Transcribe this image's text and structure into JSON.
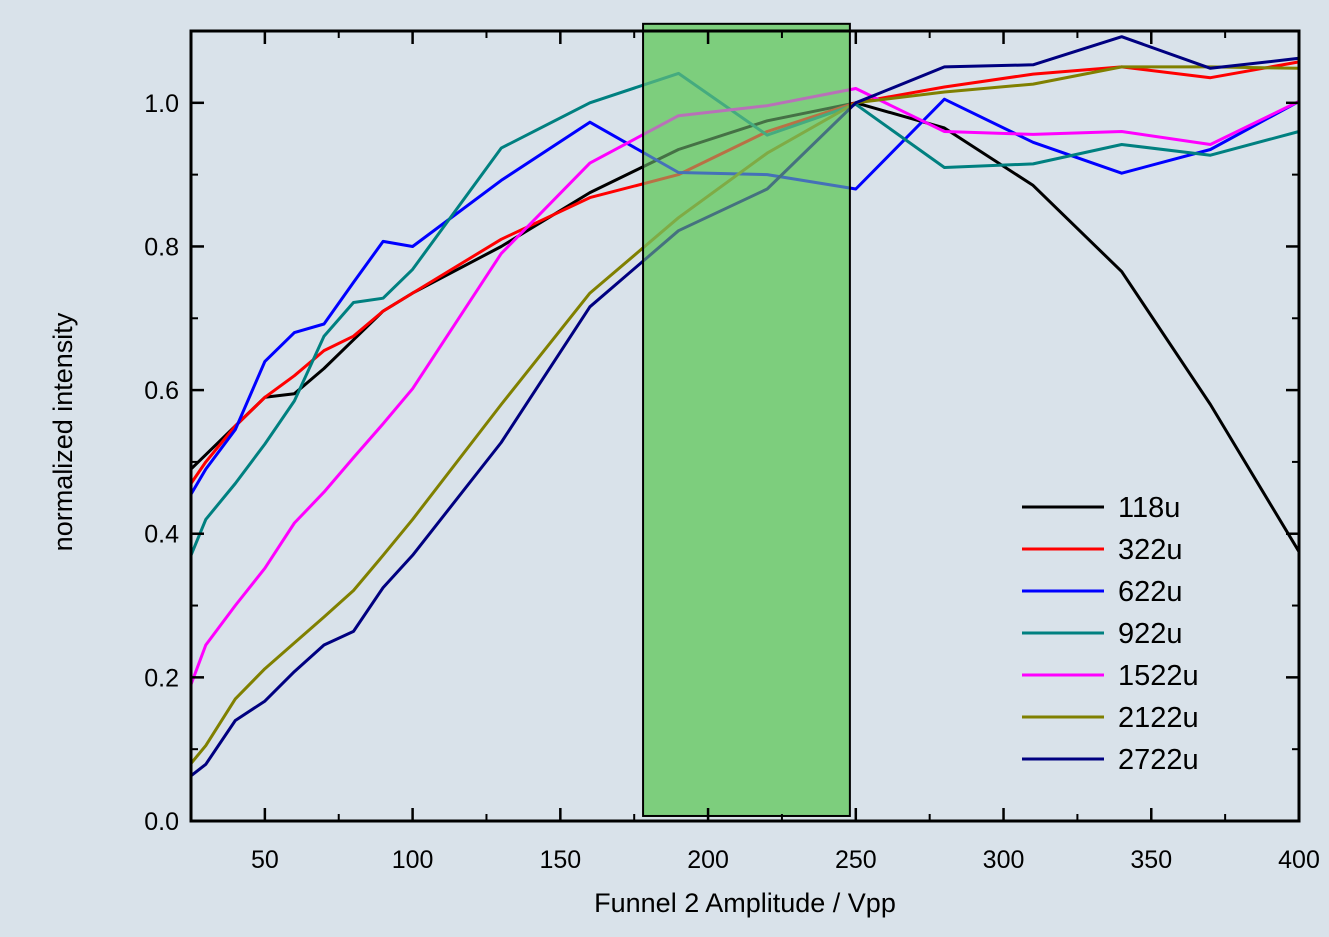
{
  "chart_data": {
    "type": "line",
    "title": "",
    "xlabel": "Funnel 2 Amplitude / Vpp",
    "ylabel": "normalized intensity",
    "xlim": [
      25,
      400
    ],
    "ylim": [
      0,
      1.1
    ],
    "x_ticks": [
      50,
      100,
      150,
      200,
      250,
      300,
      350,
      400
    ],
    "x_tick_labels": [
      "50",
      "100",
      "150",
      "200",
      "250",
      "300",
      "350",
      "400"
    ],
    "y_ticks": [
      0,
      0.2,
      0.4,
      0.6,
      0.8,
      1.0
    ],
    "y_tick_labels": [
      "0.0",
      "0.2",
      "0.4",
      "0.6",
      "0.8",
      "1.0"
    ],
    "grid": false,
    "legend_position": "bottom-right",
    "highlight_region": {
      "x": [
        178,
        248
      ],
      "y": [
        0.007,
        1.11
      ],
      "color": "#7dce7d"
    },
    "series": [
      {
        "name": "118u",
        "color": "#000000",
        "points": [
          [
            25,
            0.49
          ],
          [
            30,
            0.51
          ],
          [
            40,
            0.55
          ],
          [
            50,
            0.59
          ],
          [
            60,
            0.595
          ],
          [
            70,
            0.63
          ],
          [
            80,
            0.67
          ],
          [
            90,
            0.71
          ],
          [
            100,
            0.735
          ],
          [
            130,
            0.8
          ],
          [
            160,
            0.875
          ],
          [
            190,
            0.935
          ],
          [
            220,
            0.975
          ],
          [
            250,
            1.0
          ],
          [
            280,
            0.965
          ],
          [
            310,
            0.885
          ],
          [
            340,
            0.765
          ],
          [
            370,
            0.58
          ],
          [
            400,
            0.375
          ]
        ]
      },
      {
        "name": "322u",
        "color": "#ff0000",
        "points": [
          [
            25,
            0.47
          ],
          [
            30,
            0.5
          ],
          [
            40,
            0.55
          ],
          [
            50,
            0.59
          ],
          [
            60,
            0.62
          ],
          [
            70,
            0.655
          ],
          [
            80,
            0.675
          ],
          [
            90,
            0.71
          ],
          [
            100,
            0.735
          ],
          [
            130,
            0.81
          ],
          [
            160,
            0.868
          ],
          [
            190,
            0.9
          ],
          [
            220,
            0.96
          ],
          [
            250,
            1.0
          ],
          [
            280,
            1.022
          ],
          [
            310,
            1.04
          ],
          [
            340,
            1.05
          ],
          [
            370,
            1.035
          ],
          [
            400,
            1.057
          ]
        ]
      },
      {
        "name": "622u",
        "color": "#0000ff",
        "points": [
          [
            25,
            0.455
          ],
          [
            30,
            0.49
          ],
          [
            40,
            0.545
          ],
          [
            50,
            0.64
          ],
          [
            60,
            0.68
          ],
          [
            70,
            0.692
          ],
          [
            80,
            0.75
          ],
          [
            90,
            0.807
          ],
          [
            100,
            0.8
          ],
          [
            130,
            0.892
          ],
          [
            160,
            0.973
          ],
          [
            190,
            0.903
          ],
          [
            220,
            0.9
          ],
          [
            250,
            0.88
          ],
          [
            280,
            1.005
          ],
          [
            310,
            0.945
          ],
          [
            340,
            0.902
          ],
          [
            370,
            0.935
          ],
          [
            400,
            1.002
          ]
        ]
      },
      {
        "name": "922u",
        "color": "#008080",
        "points": [
          [
            25,
            0.37
          ],
          [
            30,
            0.42
          ],
          [
            40,
            0.47
          ],
          [
            50,
            0.525
          ],
          [
            60,
            0.585
          ],
          [
            70,
            0.675
          ],
          [
            80,
            0.722
          ],
          [
            90,
            0.728
          ],
          [
            100,
            0.768
          ],
          [
            130,
            0.937
          ],
          [
            160,
            1.0
          ],
          [
            190,
            1.041
          ],
          [
            220,
            0.955
          ],
          [
            250,
            0.998
          ],
          [
            280,
            0.91
          ],
          [
            310,
            0.915
          ],
          [
            340,
            0.942
          ],
          [
            370,
            0.927
          ],
          [
            400,
            0.96
          ]
        ]
      },
      {
        "name": "1522u",
        "color": "#ff00ff",
        "points": [
          [
            25,
            0.19
          ],
          [
            30,
            0.245
          ],
          [
            40,
            0.3
          ],
          [
            50,
            0.352
          ],
          [
            60,
            0.415
          ],
          [
            70,
            0.458
          ],
          [
            80,
            0.506
          ],
          [
            90,
            0.553
          ],
          [
            100,
            0.602
          ],
          [
            130,
            0.79
          ],
          [
            160,
            0.916
          ],
          [
            190,
            0.982
          ],
          [
            220,
            0.996
          ],
          [
            250,
            1.02
          ],
          [
            280,
            0.96
          ],
          [
            310,
            0.956
          ],
          [
            340,
            0.96
          ],
          [
            370,
            0.942
          ],
          [
            400,
            1.002
          ]
        ]
      },
      {
        "name": "2122u",
        "color": "#808000",
        "points": [
          [
            25,
            0.08
          ],
          [
            30,
            0.105
          ],
          [
            40,
            0.17
          ],
          [
            50,
            0.212
          ],
          [
            60,
            0.248
          ],
          [
            70,
            0.284
          ],
          [
            80,
            0.321
          ],
          [
            90,
            0.37
          ],
          [
            100,
            0.42
          ],
          [
            130,
            0.58
          ],
          [
            160,
            0.735
          ],
          [
            190,
            0.84
          ],
          [
            220,
            0.93
          ],
          [
            250,
            1.0
          ],
          [
            280,
            1.015
          ],
          [
            310,
            1.026
          ],
          [
            340,
            1.05
          ],
          [
            370,
            1.05
          ],
          [
            400,
            1.048
          ]
        ]
      },
      {
        "name": "2722u",
        "color": "#000080",
        "points": [
          [
            25,
            0.063
          ],
          [
            30,
            0.079
          ],
          [
            40,
            0.14
          ],
          [
            50,
            0.167
          ],
          [
            60,
            0.208
          ],
          [
            70,
            0.245
          ],
          [
            80,
            0.264
          ],
          [
            90,
            0.325
          ],
          [
            100,
            0.37
          ],
          [
            130,
            0.527
          ],
          [
            160,
            0.716
          ],
          [
            190,
            0.822
          ],
          [
            220,
            0.88
          ],
          [
            250,
            1.0
          ],
          [
            280,
            1.05
          ],
          [
            310,
            1.053
          ],
          [
            340,
            1.092
          ],
          [
            370,
            1.048
          ],
          [
            400,
            1.062
          ]
        ]
      }
    ]
  }
}
